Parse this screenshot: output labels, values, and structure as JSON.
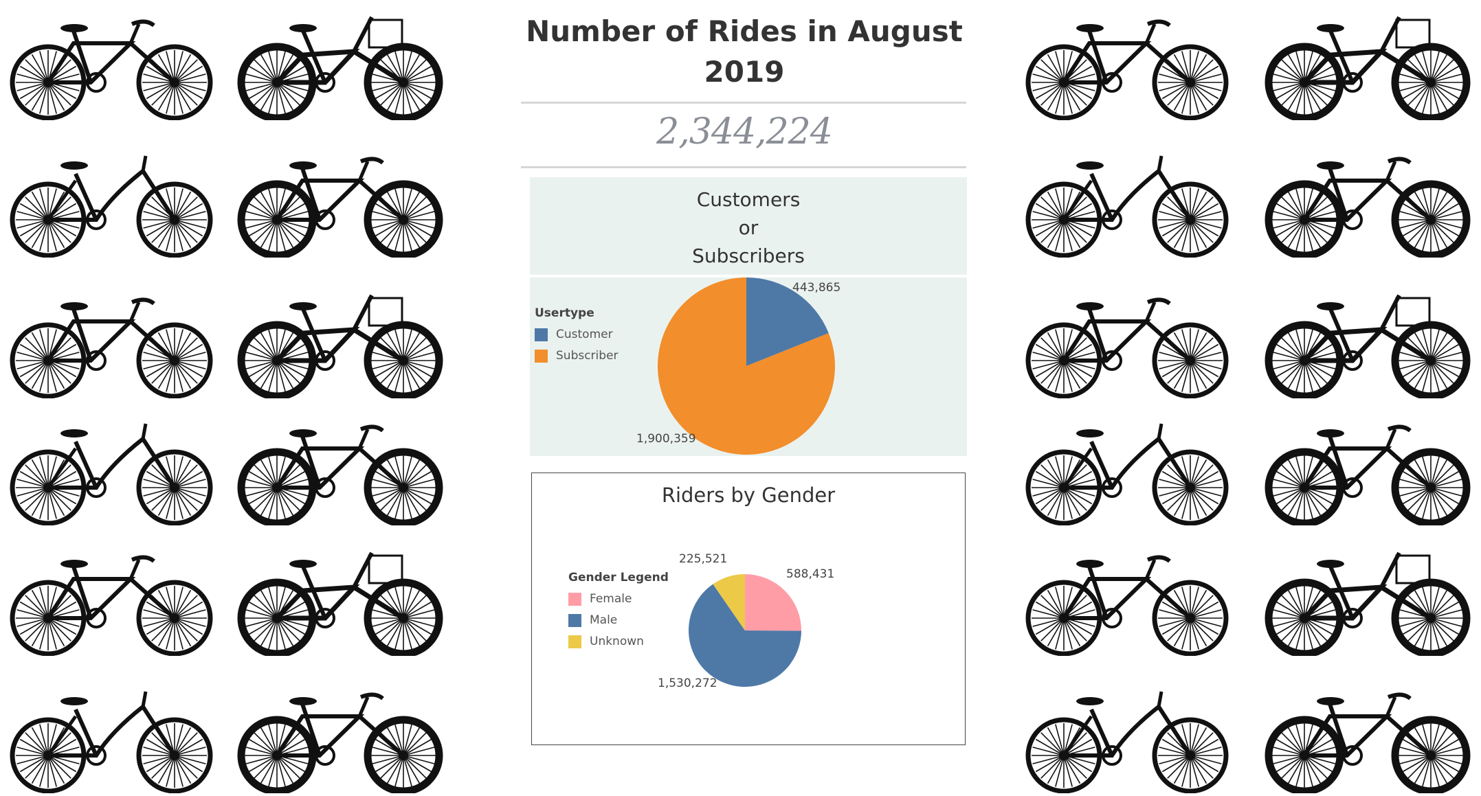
{
  "title": "Number of Rides in August 2019",
  "total_rides": "2,344,224",
  "usertype_chart": {
    "header_lines": [
      "Customers",
      "or",
      "Subscribers"
    ],
    "legend_title": "Usertype",
    "labels": [
      "443,865",
      "1,900,359"
    ]
  },
  "gender_chart": {
    "title": "Riders by Gender",
    "legend_title": "Gender Legend",
    "labels": [
      "588,431",
      "1,530,272",
      "225,521"
    ]
  },
  "chart_data": [
    {
      "type": "pie",
      "title": "Customers or Subscribers",
      "legend_title": "Usertype",
      "categories": [
        "Customer",
        "Subscriber"
      ],
      "values": [
        443865,
        1900359
      ],
      "colors": [
        "#4e79a7",
        "#f28e2b"
      ],
      "legend_position": "left"
    },
    {
      "type": "pie",
      "title": "Riders by Gender",
      "legend_title": "Gender Legend",
      "categories": [
        "Female",
        "Male",
        "Unknown"
      ],
      "values": [
        588431,
        1530272,
        225521
      ],
      "colors": [
        "#ff9da7",
        "#4e79a7",
        "#edc948"
      ],
      "legend_position": "left"
    }
  ]
}
